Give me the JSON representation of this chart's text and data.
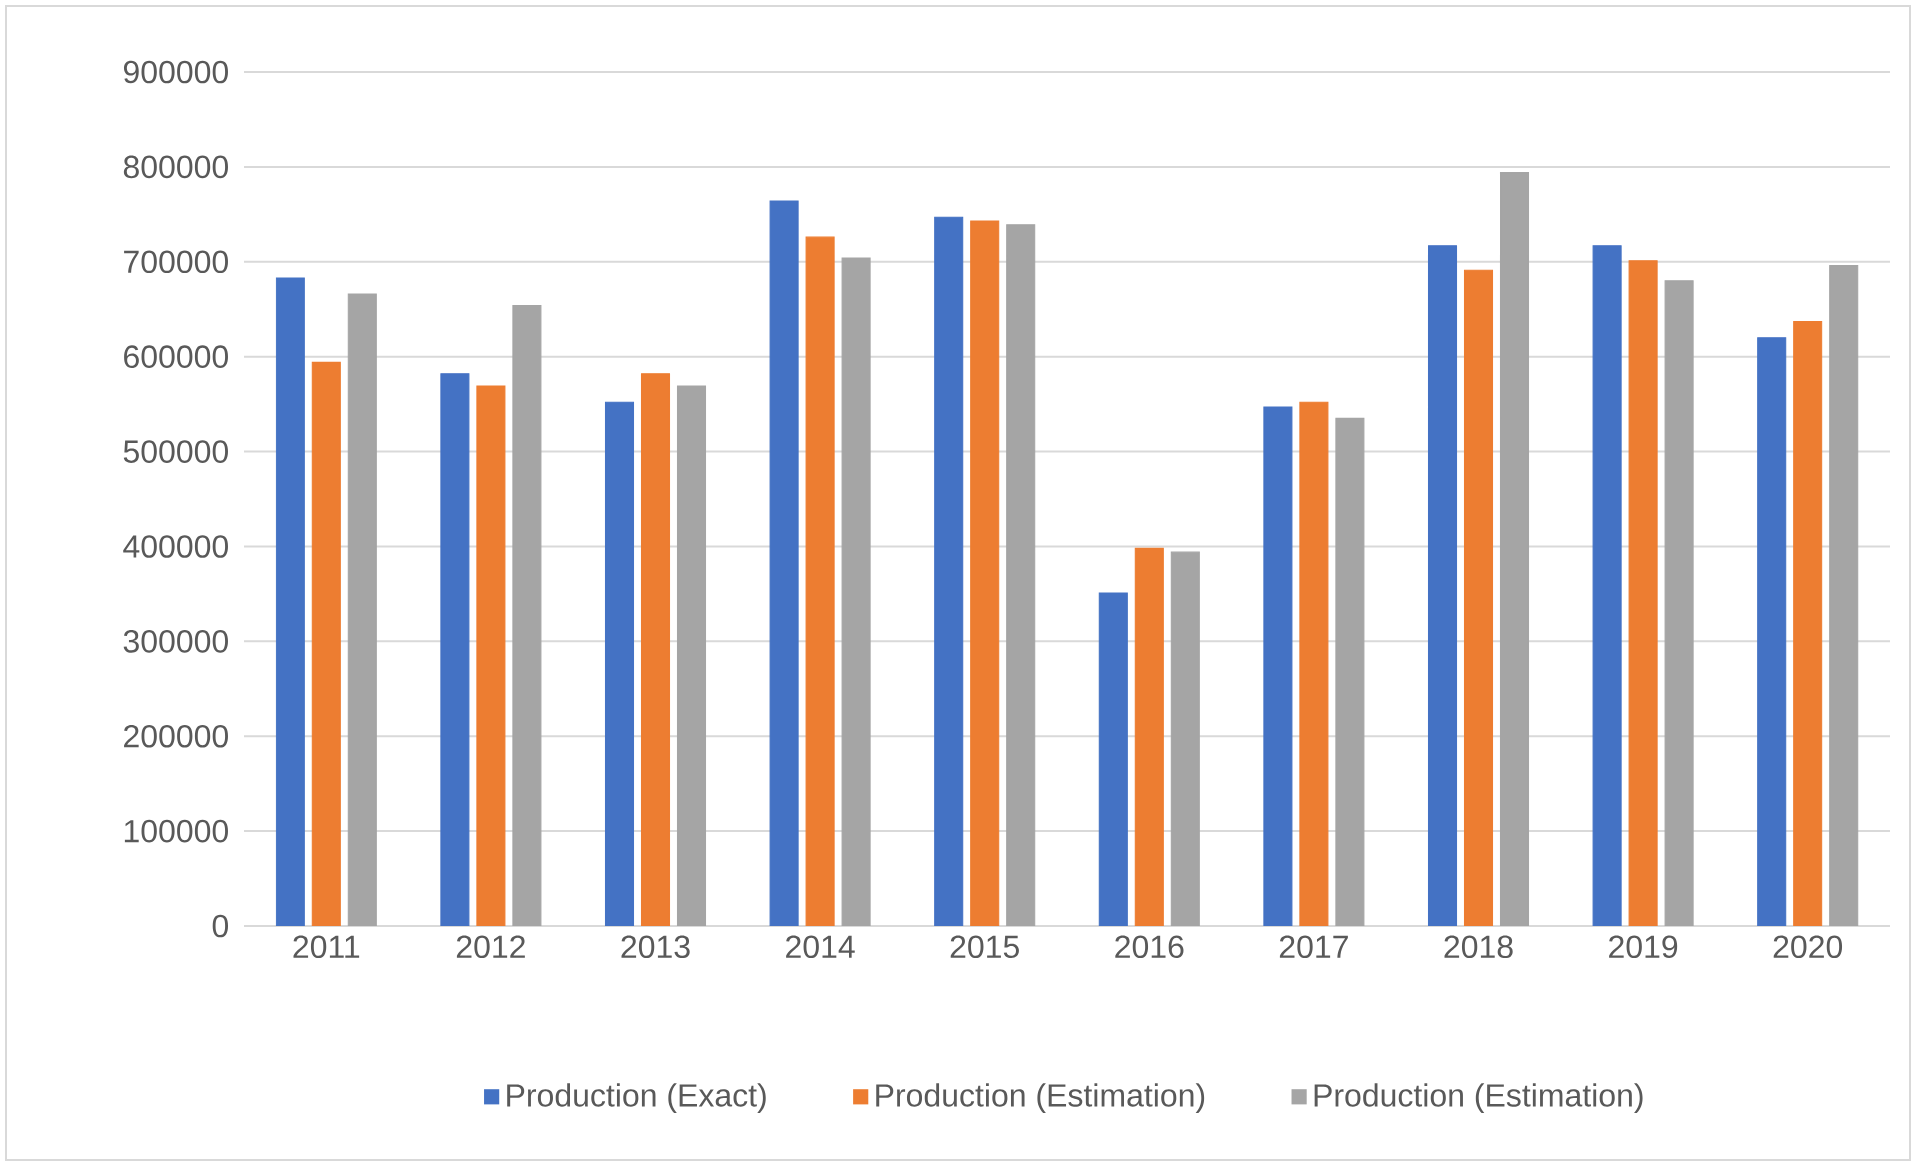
{
  "chart_data": {
    "type": "bar",
    "categories": [
      "2011",
      "2012",
      "2013",
      "2014",
      "2015",
      "2016",
      "2017",
      "2018",
      "2019",
      "2020"
    ],
    "series": [
      {
        "name": "Production (Exact)",
        "color": "#4472c4",
        "values": [
          683000,
          582000,
          552000,
          764000,
          747000,
          351000,
          547000,
          717000,
          717000,
          620000
        ]
      },
      {
        "name": "Production (Estimation)",
        "color": "#ed7d31",
        "values": [
          594000,
          569000,
          582000,
          726000,
          743000,
          398000,
          552000,
          691000,
          701000,
          637000
        ]
      },
      {
        "name": "Production (Estimation)",
        "color": "#a5a5a5",
        "values": [
          666000,
          654000,
          569000,
          704000,
          739000,
          394000,
          535000,
          794000,
          680000,
          696000
        ]
      }
    ],
    "ylim": [
      0,
      900000
    ],
    "yticks": [
      0,
      100000,
      200000,
      300000,
      400000,
      500000,
      600000,
      700000,
      800000,
      900000
    ],
    "grid": "y",
    "legend": "bottom"
  }
}
